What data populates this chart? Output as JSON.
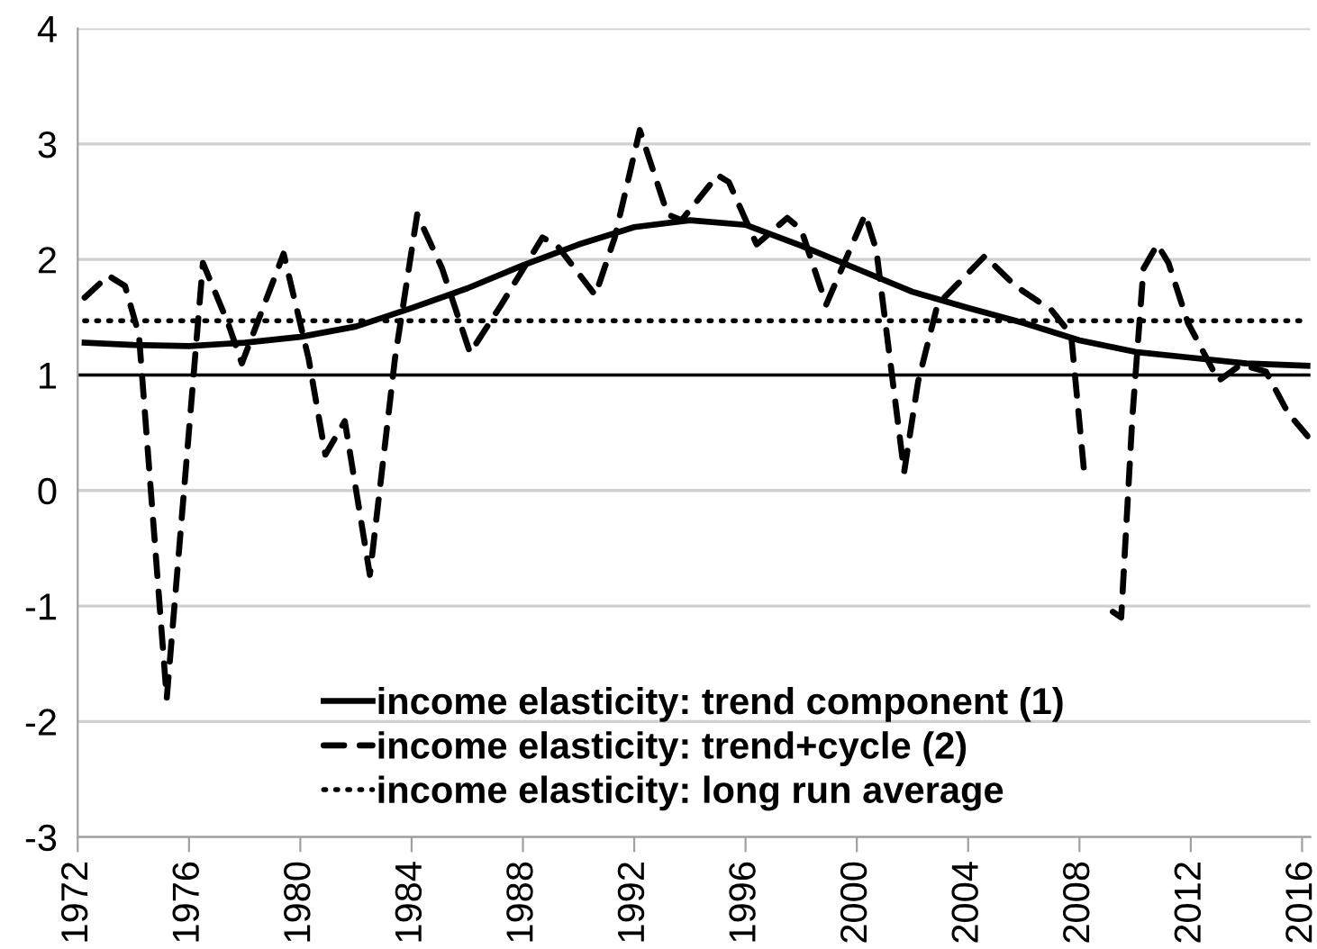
{
  "chart_data": {
    "type": "line",
    "xlim": [
      1972,
      2016.3
    ],
    "xticks": [
      1972,
      1976,
      1980,
      1984,
      1988,
      1992,
      1996,
      2000,
      2004,
      2008,
      2012,
      2016
    ],
    "ylim": [
      -3,
      4
    ],
    "yticks": [
      -3,
      -2,
      -1,
      0,
      1,
      2,
      3,
      4
    ],
    "grid": "y",
    "legend": "bottom",
    "marker": "none",
    "series": [
      {
        "name": "income elasticity: trend component (1)",
        "color": "#000000",
        "line_style": "solid",
        "x": [
          1972.25,
          1974,
          1976,
          1978,
          1980,
          1982,
          1984,
          1986,
          1988,
          1990,
          1992,
          1994,
          1996,
          1998,
          2000,
          2002,
          2004,
          2006,
          2008,
          2010,
          2012,
          2014,
          2016.2
        ],
        "values": [
          1.28,
          1.26,
          1.25,
          1.28,
          1.33,
          1.42,
          1.58,
          1.75,
          1.95,
          2.13,
          2.28,
          2.34,
          2.3,
          2.12,
          1.92,
          1.72,
          1.58,
          1.45,
          1.3,
          1.2,
          1.15,
          1.1,
          1.08
        ]
      },
      {
        "name": "income elasticity: trend+cycle (2)",
        "color": "#000000",
        "line_style": "dashed",
        "x": [
          1972.25,
          1973.1,
          1973.7,
          1974.2,
          1975.2,
          1976.5,
          1977.4,
          1977.9,
          1979.4,
          1980.3,
          1980.9,
          1981.6,
          1982.5,
          1983.4,
          1984.2,
          1985.1,
          1986.1,
          1987.2,
          1988.7,
          1989.2,
          1990.6,
          1991.3,
          1992.2,
          1993.2,
          1993.7,
          1995.0,
          1995.4,
          1996.4,
          1997.5,
          1998.0,
          1998.9,
          2000.3,
          2000.7,
          2001.7,
          2002.2,
          2002.9,
          2004.6,
          2005.7,
          2007.0,
          2007.7,
          2008.2,
          2008.7,
          2009.2,
          2009.5,
          2009.9,
          2010.3,
          2010.8,
          2011.2,
          2011.9,
          2013.0,
          2013.8,
          2014.7,
          2015.5,
          2016.2
        ],
        "values": [
          1.67,
          1.86,
          1.77,
          1.35,
          -1.8,
          1.97,
          1.45,
          1.1,
          2.05,
          1.14,
          0.31,
          0.6,
          -0.73,
          1.14,
          2.39,
          1.92,
          1.19,
          1.6,
          2.19,
          2.13,
          1.69,
          2.19,
          3.12,
          2.39,
          2.34,
          2.73,
          2.67,
          2.13,
          2.36,
          2.26,
          1.61,
          2.39,
          2.08,
          0.16,
          0.94,
          1.61,
          2.03,
          1.77,
          1.56,
          1.35,
          0.08,
          null,
          -1.05,
          -1.1,
          0.63,
          1.92,
          2.13,
          1.97,
          1.45,
          0.95,
          1.09,
          1.03,
          0.67,
          0.47
        ]
      },
      {
        "name": "income elasticity: long run average",
        "color": "#000000",
        "line_style": "dotted",
        "x": [
          1972.25,
          2016.2
        ],
        "values": [
          1.47,
          1.47
        ]
      }
    ],
    "ref_lines": [
      {
        "axis": "y",
        "value": 1,
        "color": "#000000",
        "line_style": "solid"
      }
    ]
  }
}
